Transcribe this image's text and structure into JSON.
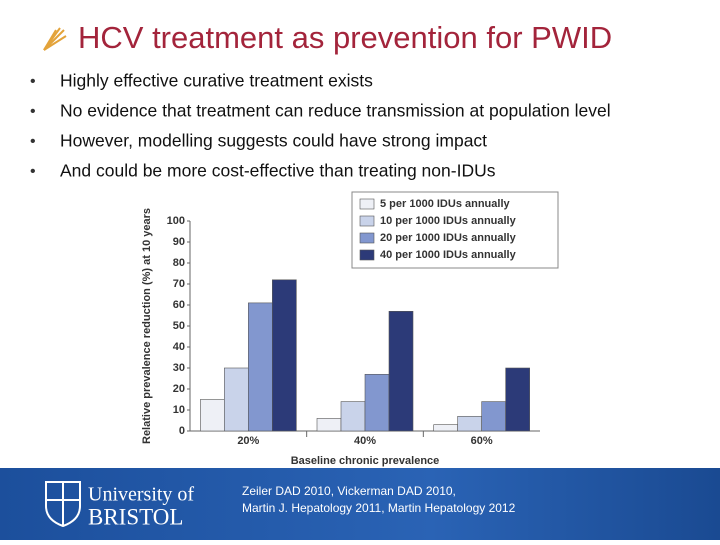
{
  "slide": {
    "title": "HCV treatment as prevention for PWID",
    "bullets": [
      "Highly effective curative treatment exists",
      "No evidence that treatment can reduce transmission at population level",
      "However, modelling suggests could have strong impact",
      "And could be more cost-effective than treating non-IDUs"
    ],
    "logo": {
      "line1": "University of",
      "line2": "BRISTOL"
    },
    "citation": [
      "Zeiler DAD 2010, Vickerman DAD 2010,",
      "Martin J. Hepatology 2011, Martin Hepatology 2012"
    ]
  },
  "chart_data": {
    "type": "bar",
    "y_label": "Relative prevalence reduction (%) at 10 years",
    "x_label": "Baseline chronic prevalence",
    "categories": [
      "20%",
      "40%",
      "60%"
    ],
    "series": [
      {
        "name": "5 per 1000 IDUs annually",
        "color": "#eef0f6",
        "values": [
          15,
          6,
          3
        ]
      },
      {
        "name": "10 per 1000 IDUs annually",
        "color": "#c9d3ea",
        "values": [
          30,
          14,
          7
        ]
      },
      {
        "name": "20 per 1000 IDUs annually",
        "color": "#8297cf",
        "values": [
          61,
          27,
          14
        ]
      },
      {
        "name": "40 per 1000 IDUs annually",
        "color": "#2c3a78",
        "values": [
          72,
          57,
          30
        ]
      }
    ],
    "ylim": [
      0,
      100
    ],
    "yticks": [
      0,
      10,
      20,
      30,
      40,
      50,
      60,
      70,
      80,
      90,
      100
    ],
    "legend": "top-right"
  }
}
